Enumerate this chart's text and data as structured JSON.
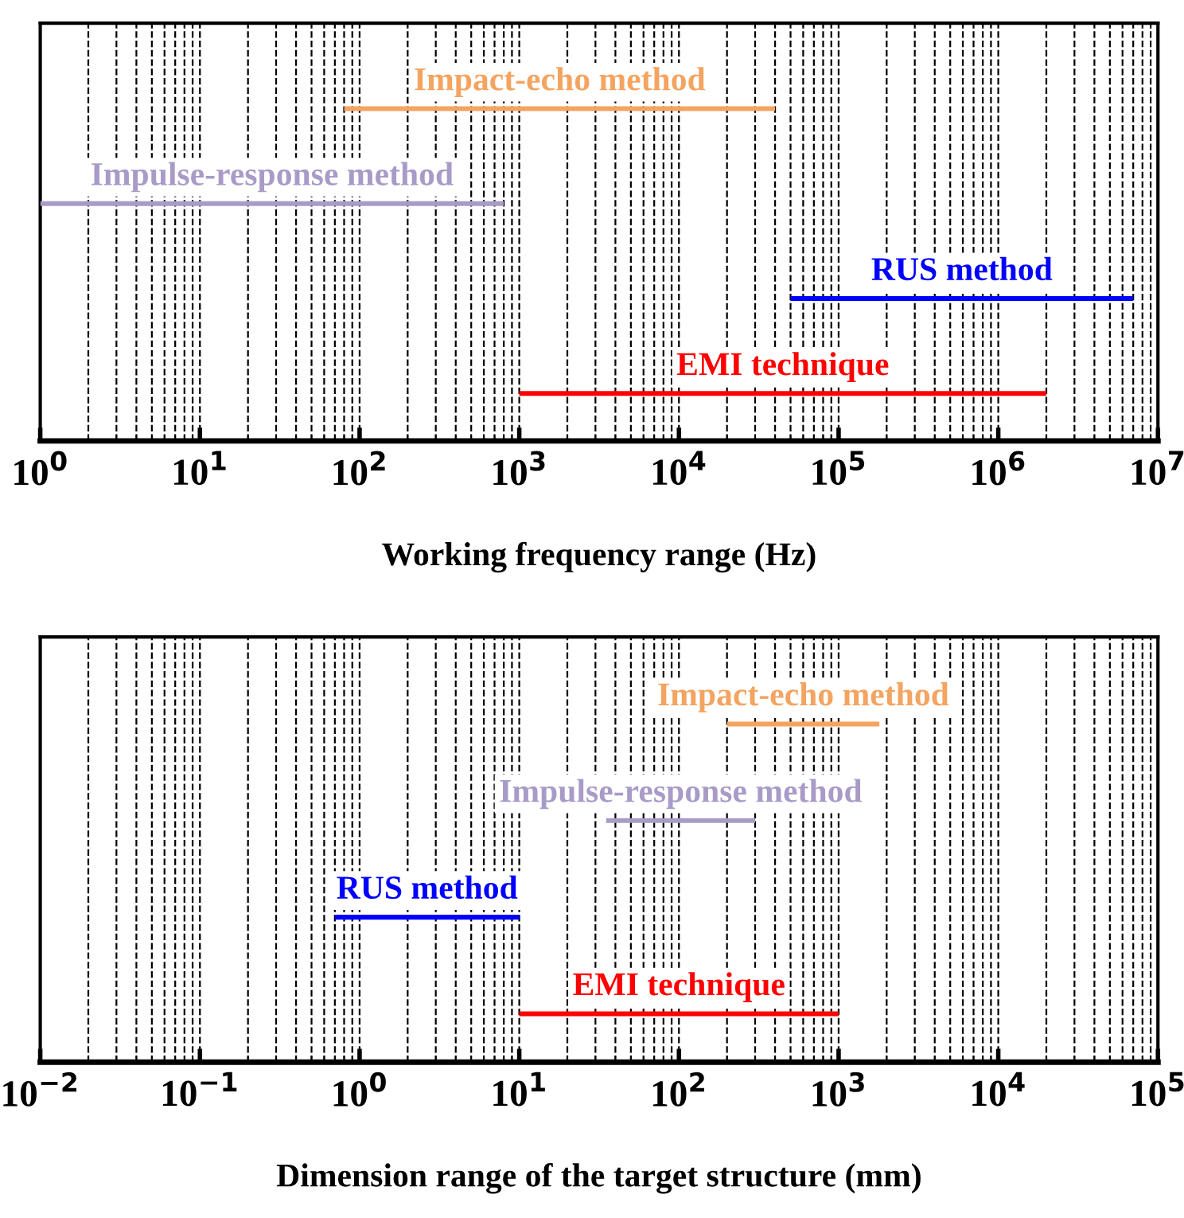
{
  "chart_data": [
    {
      "type": "bar",
      "orientation": "horizontal",
      "log": "x",
      "grid": "x",
      "legend": false,
      "xlabel": "Working frequency range (Hz)",
      "categories": [
        null,
        null,
        null,
        null
      ],
      "xlim": [
        1,
        10000000
      ],
      "xticks": [
        {
          "value": 1,
          "label": "10$^{0}$"
        },
        {
          "value": 10,
          "label": "10$^{1}$"
        },
        {
          "value": 100,
          "label": "10$^{2}$"
        },
        {
          "value": 1000,
          "label": "10$^{3}$"
        },
        {
          "value": 10000,
          "label": "10$^{4}$"
        },
        {
          "value": 100000,
          "label": "10$^{5}$"
        },
        {
          "value": 1000000,
          "label": "10$^{6}$"
        },
        {
          "value": 10000000,
          "label": "10$^{7}$"
        }
      ],
      "series": [
        {
          "name": "Impact-echo method",
          "color": "#f4a460",
          "base": [
            80,
            null,
            null,
            null
          ],
          "values": [
            39920,
            null,
            null,
            null
          ]
        },
        {
          "name": "Impulse-response method",
          "color": "#a99bc8",
          "base": [
            null,
            1,
            null,
            null
          ],
          "values": [
            null,
            799,
            null,
            null
          ]
        },
        {
          "name": "RUS method",
          "color": "#0000ff",
          "base": [
            null,
            null,
            50000,
            null
          ],
          "values": [
            null,
            null,
            6950000,
            null
          ]
        },
        {
          "name": "EMI technique",
          "color": "#ff0000",
          "base": [
            null,
            null,
            null,
            1000
          ],
          "values": [
            null,
            null,
            null,
            1999000
          ]
        }
      ]
    },
    {
      "type": "bar",
      "orientation": "horizontal",
      "log": "x",
      "grid": "x",
      "legend": false,
      "xlabel": "Dimension range of the target structure (mm)",
      "categories": [
        null,
        null,
        null,
        null
      ],
      "xlim": [
        0.01,
        100000
      ],
      "xticks": [
        {
          "value": 0.01,
          "label": "10$^{−2}$"
        },
        {
          "value": 0.1,
          "label": "10$^{−1}$"
        },
        {
          "value": 1,
          "label": "10$^{0}$"
        },
        {
          "value": 10,
          "label": "10$^{1}$"
        },
        {
          "value": 100,
          "label": "10$^{2}$"
        },
        {
          "value": 1000,
          "label": "10$^{3}$"
        },
        {
          "value": 10000,
          "label": "10$^{4}$"
        },
        {
          "value": 100000,
          "label": "10$^{5}$"
        }
      ],
      "series": [
        {
          "name": "Impact-echo method",
          "color": "#f4a460",
          "base": [
            200,
            null,
            null,
            null
          ],
          "values": [
            1600,
            null,
            null,
            null
          ]
        },
        {
          "name": "Impulse-response method",
          "color": "#a99bc8",
          "base": [
            null,
            35,
            null,
            null
          ],
          "values": [
            null,
            265,
            null,
            null
          ]
        },
        {
          "name": "RUS method",
          "color": "#0000ff",
          "base": [
            null,
            null,
            0.7,
            null
          ],
          "values": [
            null,
            null,
            9.3,
            null
          ]
        },
        {
          "name": "EMI technique",
          "color": "#ff0000",
          "base": [
            null,
            null,
            null,
            10
          ],
          "values": [
            null,
            null,
            null,
            990
          ]
        }
      ]
    }
  ]
}
